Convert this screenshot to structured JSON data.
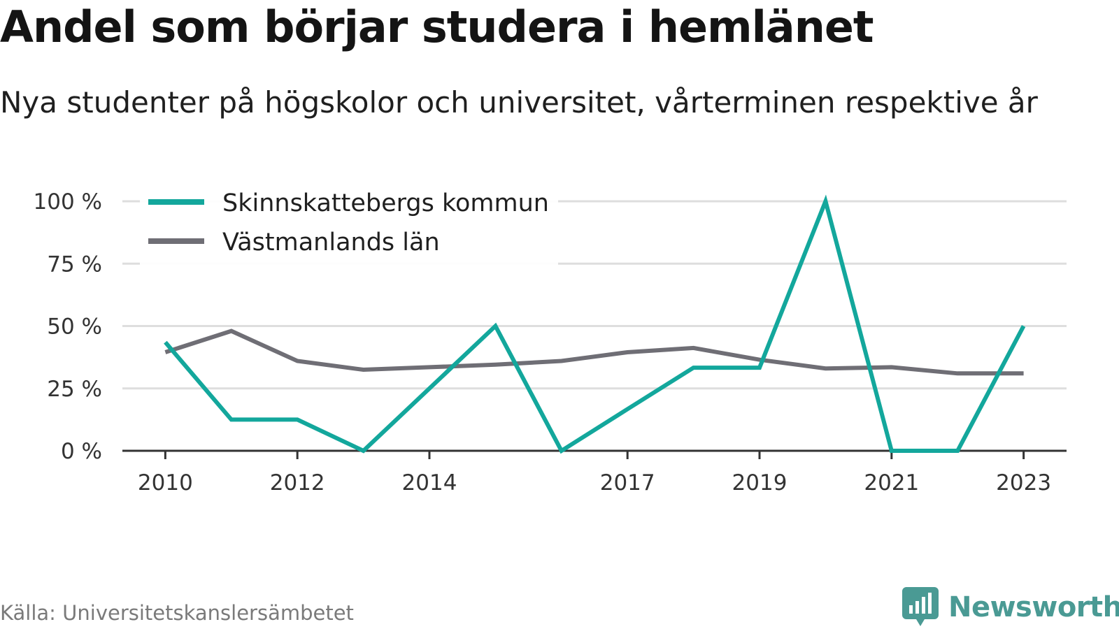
{
  "title": "Andel som börjar studera i hemlänet",
  "subtitle": "Nya studenter på högskolor och universitet, vårterminen respektive år",
  "source": "Källa: Universitetskanslersämbetet",
  "brand": {
    "name": "Newsworthy",
    "icon": "newsworthy-logo-icon",
    "color": "#4a9a94"
  },
  "colors": {
    "series1": "#13a79c",
    "series2": "#6f6e75",
    "grid": "#dedede",
    "axis": "#333333"
  },
  "chart_data": {
    "type": "line",
    "x": [
      2010,
      2011,
      2012,
      2013,
      2014,
      2015,
      2016,
      2017,
      2018,
      2019,
      2020,
      2021,
      2022,
      2023
    ],
    "x_tick_values": [
      2010,
      2012,
      2014,
      2017,
      2019,
      2021,
      2023
    ],
    "x_tick_labels": [
      "2010",
      "2012",
      "2014",
      "2017",
      "2019",
      "2021",
      "2023"
    ],
    "xlim": [
      2009.35,
      2023.65
    ],
    "ylim": [
      0,
      100
    ],
    "y_ticks": [
      0,
      25,
      50,
      75,
      100
    ],
    "y_tick_labels": [
      "0 %",
      "25 %",
      "50 %",
      "75 %",
      "100 %"
    ],
    "grid": true,
    "legend_position": "top-left",
    "series": [
      {
        "name": "Skinnskattebergs kommun",
        "color": "#13a79c",
        "values": [
          43.5,
          12.5,
          12.5,
          0,
          25,
          50,
          0,
          16.7,
          33.3,
          33.3,
          100,
          0,
          0,
          50
        ]
      },
      {
        "name": "Västmanlands län",
        "color": "#6f6e75",
        "values": [
          39.5,
          48,
          36,
          32.5,
          33.5,
          34.5,
          36,
          39.5,
          41.2,
          36.5,
          33,
          33.5,
          31,
          31
        ]
      }
    ]
  }
}
